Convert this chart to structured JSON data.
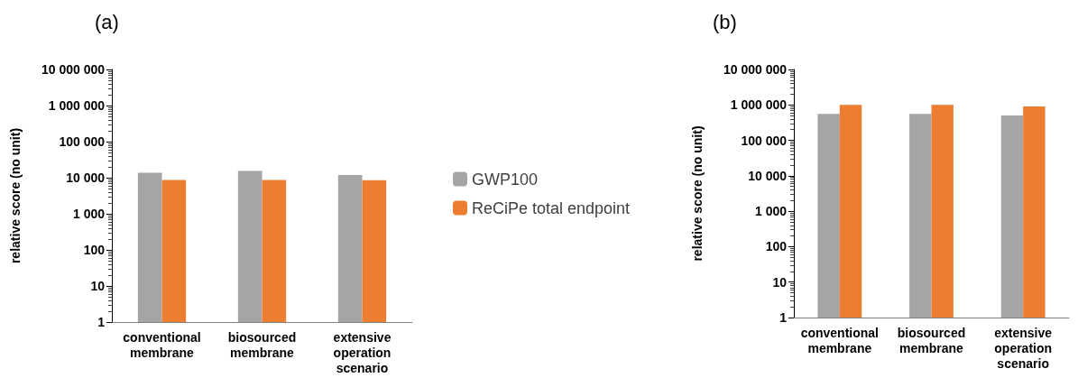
{
  "chart_data": [
    {
      "type": "bar",
      "title": "(a)",
      "ylabel": "relative score (no unit)",
      "categories": [
        "conventional\nmembrane",
        "biosourced\nmembrane",
        "extensive\noperation\nscenario"
      ],
      "series": [
        {
          "name": "GWP100",
          "color": "#a5a5a5",
          "values": [
            13800,
            15500,
            11900
          ]
        },
        {
          "name": "ReCiPe total endpoint",
          "color": "#ed7d31",
          "values": [
            8700,
            8700,
            8500
          ]
        }
      ],
      "log": true,
      "ylim": [
        1,
        10000000
      ],
      "yticks": [
        1,
        10,
        100,
        {
          "value": 1000,
          "label": "1 000"
        },
        {
          "value": 10000,
          "label": "10 000"
        },
        {
          "value": 100000,
          "label": "100 000"
        },
        {
          "value": 1000000,
          "label": "1 000 000"
        },
        {
          "value": 10000000,
          "label": "10 000 000"
        }
      ],
      "grid": false,
      "legend": "right"
    },
    {
      "type": "bar",
      "title": "(b)",
      "ylabel": "relative score (no unit)",
      "categories": [
        "conventional\nmembrane",
        "biosourced\nmembrane",
        "extensive\noperation\nscenario"
      ],
      "series": [
        {
          "color": "#a5a5a5",
          "values": [
            560000,
            560000,
            500000
          ]
        },
        {
          "color": "#ed7d31",
          "values": [
            1000000,
            1000000,
            900000
          ]
        }
      ],
      "log": true,
      "ylim": [
        1,
        10000000
      ],
      "yticks": [
        1,
        10,
        100,
        {
          "value": 1000,
          "label": "1 000"
        },
        {
          "value": 10000,
          "label": "10 000"
        },
        {
          "value": 100000,
          "label": "100 000"
        },
        {
          "value": 1000000,
          "label": "1 000 000"
        },
        {
          "value": 10000000,
          "label": "10 000 000"
        }
      ],
      "grid": false,
      "legend": false
    }
  ]
}
